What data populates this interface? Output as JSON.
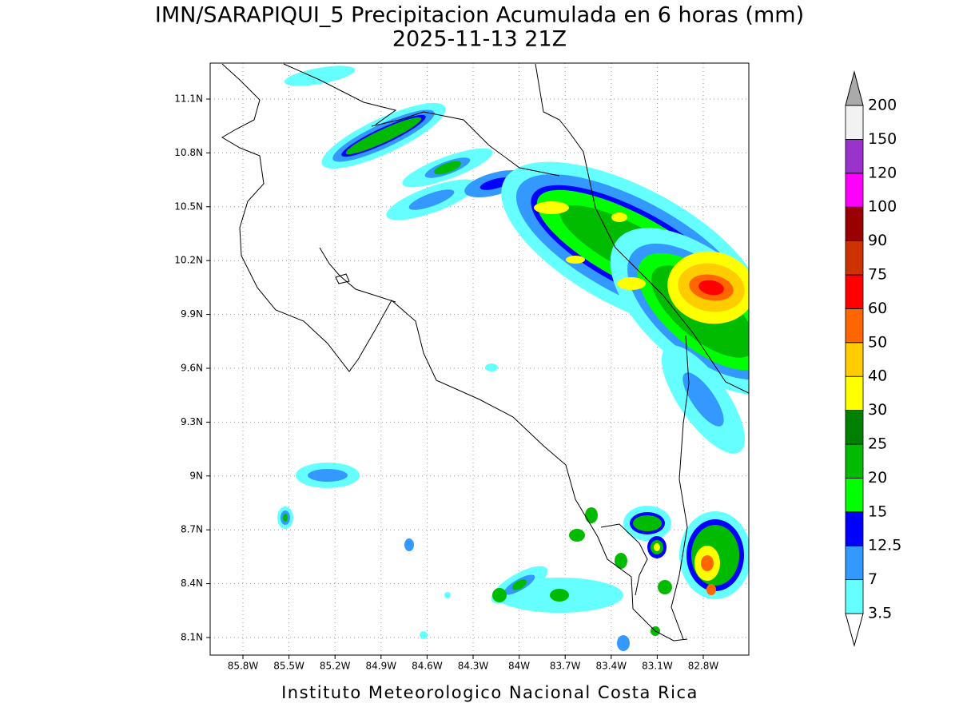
{
  "title": "IMN/SARAPIQUI_5 Precipitacion Acumulada en 6 horas (mm)",
  "subtitle": "2025-11-13 21Z",
  "footer": "Instituto Meteorologico Nacional Costa Rica",
  "map": {
    "lon_labels": [
      "85.8W",
      "85.5W",
      "85.2W",
      "84.9W",
      "84.6W",
      "84.3W",
      "84W",
      "83.7W",
      "83.4W",
      "83.1W",
      "82.8W"
    ],
    "lat_labels": [
      "11.1N",
      "10.8N",
      "10.5N",
      "10.2N",
      "9.9N",
      "9.6N",
      "9.3N",
      "9N",
      "8.7N",
      "8.4N",
      "8.1N"
    ]
  },
  "colorbar": {
    "levels": [
      3.5,
      7,
      12.5,
      15,
      20,
      25,
      30,
      40,
      50,
      60,
      75,
      90,
      100,
      120,
      150,
      200
    ],
    "colors": [
      "#ffffff",
      "#66ffff",
      "#3399ff",
      "#0000ff",
      "#00ff00",
      "#00bb00",
      "#008000",
      "#ffff00",
      "#ffcc00",
      "#ff6600",
      "#ff0000",
      "#cc3300",
      "#990000",
      "#ff00ff",
      "#9933cc",
      "#f2f2f2",
      "#aaaaaa"
    ]
  }
}
